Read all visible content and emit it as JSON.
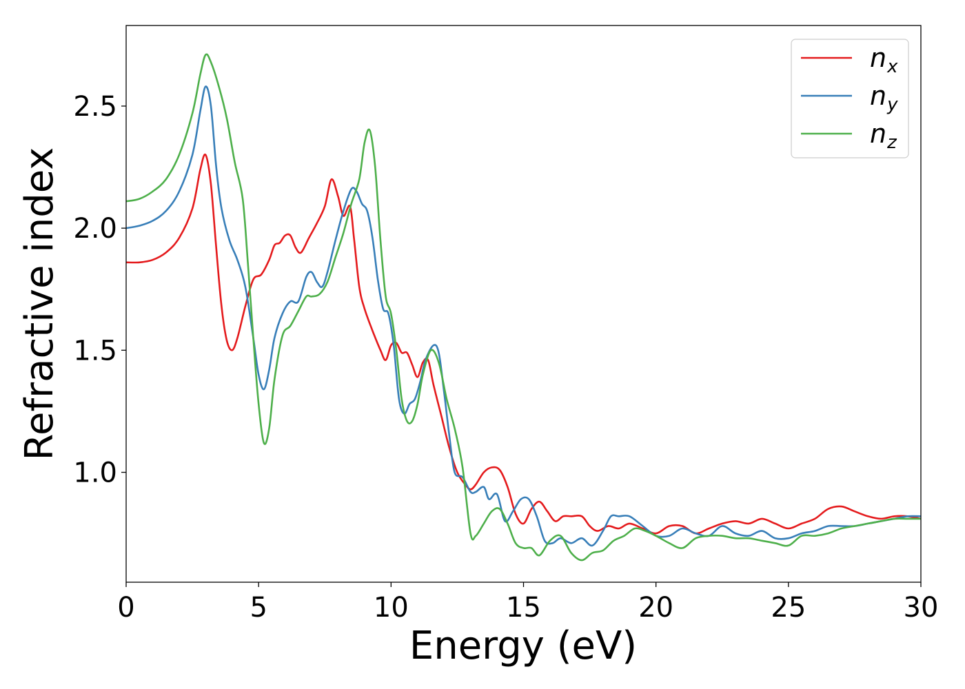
{
  "chart_data": {
    "type": "line",
    "xlabel": "Energy (eV)",
    "ylabel": "Refractive index",
    "xlim": [
      0,
      30
    ],
    "ylim": [
      0.55,
      2.83
    ],
    "xticks": [
      0,
      5,
      10,
      15,
      20,
      25,
      30
    ],
    "xtick_labels": [
      "0",
      "5",
      "10",
      "15",
      "20",
      "25",
      "30"
    ],
    "yticks": [
      1.0,
      1.5,
      2.0,
      2.5
    ],
    "ytick_labels": [
      "1.0",
      "1.5",
      "2.0",
      "2.5"
    ],
    "grid": false,
    "legend_position": "top-right",
    "series": [
      {
        "name": "n",
        "subscript": "x",
        "color": "#e41a1c",
        "points": [
          [
            0,
            1.86
          ],
          [
            0.5,
            1.86
          ],
          [
            1.0,
            1.87
          ],
          [
            1.5,
            1.9
          ],
          [
            2.0,
            1.96
          ],
          [
            2.5,
            2.08
          ],
          [
            2.8,
            2.24
          ],
          [
            3.0,
            2.3
          ],
          [
            3.2,
            2.18
          ],
          [
            3.4,
            1.92
          ],
          [
            3.6,
            1.68
          ],
          [
            3.8,
            1.54
          ],
          [
            4.0,
            1.5
          ],
          [
            4.2,
            1.55
          ],
          [
            4.5,
            1.68
          ],
          [
            4.8,
            1.79
          ],
          [
            5.1,
            1.81
          ],
          [
            5.4,
            1.87
          ],
          [
            5.6,
            1.93
          ],
          [
            5.8,
            1.94
          ],
          [
            6.0,
            1.97
          ],
          [
            6.2,
            1.97
          ],
          [
            6.4,
            1.92
          ],
          [
            6.6,
            1.9
          ],
          [
            6.9,
            1.96
          ],
          [
            7.2,
            2.02
          ],
          [
            7.5,
            2.09
          ],
          [
            7.75,
            2.2
          ],
          [
            8.0,
            2.13
          ],
          [
            8.2,
            2.05
          ],
          [
            8.45,
            2.09
          ],
          [
            8.6,
            1.96
          ],
          [
            8.8,
            1.76
          ],
          [
            9.0,
            1.67
          ],
          [
            9.3,
            1.58
          ],
          [
            9.6,
            1.5
          ],
          [
            9.8,
            1.46
          ],
          [
            10.0,
            1.52
          ],
          [
            10.2,
            1.53
          ],
          [
            10.4,
            1.49
          ],
          [
            10.6,
            1.49
          ],
          [
            10.8,
            1.44
          ],
          [
            11.0,
            1.39
          ],
          [
            11.2,
            1.45
          ],
          [
            11.4,
            1.46
          ],
          [
            11.6,
            1.36
          ],
          [
            11.9,
            1.23
          ],
          [
            12.2,
            1.1
          ],
          [
            12.5,
            1.0
          ],
          [
            12.8,
            0.95
          ],
          [
            13.0,
            0.93
          ],
          [
            13.2,
            0.95
          ],
          [
            13.5,
            1.0
          ],
          [
            13.8,
            1.02
          ],
          [
            14.1,
            1.01
          ],
          [
            14.4,
            0.94
          ],
          [
            14.7,
            0.83
          ],
          [
            15.0,
            0.79
          ],
          [
            15.3,
            0.85
          ],
          [
            15.6,
            0.88
          ],
          [
            15.9,
            0.84
          ],
          [
            16.2,
            0.8
          ],
          [
            16.5,
            0.82
          ],
          [
            16.8,
            0.82
          ],
          [
            17.2,
            0.82
          ],
          [
            17.5,
            0.78
          ],
          [
            17.8,
            0.76
          ],
          [
            18.2,
            0.78
          ],
          [
            18.6,
            0.77
          ],
          [
            19.0,
            0.79
          ],
          [
            19.5,
            0.77
          ],
          [
            20.0,
            0.75
          ],
          [
            20.5,
            0.78
          ],
          [
            21.0,
            0.78
          ],
          [
            21.5,
            0.75
          ],
          [
            22.0,
            0.77
          ],
          [
            22.5,
            0.79
          ],
          [
            23.0,
            0.8
          ],
          [
            23.5,
            0.79
          ],
          [
            24.0,
            0.81
          ],
          [
            24.5,
            0.79
          ],
          [
            25.0,
            0.77
          ],
          [
            25.5,
            0.79
          ],
          [
            26.0,
            0.81
          ],
          [
            26.5,
            0.85
          ],
          [
            27.0,
            0.86
          ],
          [
            27.5,
            0.84
          ],
          [
            28.0,
            0.82
          ],
          [
            28.5,
            0.81
          ],
          [
            29.0,
            0.82
          ],
          [
            29.5,
            0.82
          ],
          [
            30.0,
            0.81
          ]
        ]
      },
      {
        "name": "n",
        "subscript": "y",
        "color": "#377eb8",
        "points": [
          [
            0,
            2.0
          ],
          [
            0.5,
            2.01
          ],
          [
            1.0,
            2.03
          ],
          [
            1.5,
            2.07
          ],
          [
            2.0,
            2.15
          ],
          [
            2.5,
            2.3
          ],
          [
            2.8,
            2.48
          ],
          [
            3.0,
            2.58
          ],
          [
            3.2,
            2.5
          ],
          [
            3.4,
            2.25
          ],
          [
            3.6,
            2.08
          ],
          [
            3.9,
            1.95
          ],
          [
            4.2,
            1.87
          ],
          [
            4.5,
            1.76
          ],
          [
            4.8,
            1.55
          ],
          [
            5.0,
            1.4
          ],
          [
            5.2,
            1.34
          ],
          [
            5.4,
            1.42
          ],
          [
            5.6,
            1.55
          ],
          [
            5.9,
            1.65
          ],
          [
            6.2,
            1.7
          ],
          [
            6.5,
            1.7
          ],
          [
            6.8,
            1.8
          ],
          [
            7.0,
            1.82
          ],
          [
            7.2,
            1.78
          ],
          [
            7.4,
            1.76
          ],
          [
            7.6,
            1.82
          ],
          [
            7.9,
            1.95
          ],
          [
            8.2,
            2.07
          ],
          [
            8.5,
            2.16
          ],
          [
            8.7,
            2.15
          ],
          [
            8.9,
            2.1
          ],
          [
            9.1,
            2.07
          ],
          [
            9.3,
            1.96
          ],
          [
            9.5,
            1.79
          ],
          [
            9.7,
            1.67
          ],
          [
            9.9,
            1.65
          ],
          [
            10.1,
            1.52
          ],
          [
            10.3,
            1.3
          ],
          [
            10.5,
            1.24
          ],
          [
            10.7,
            1.28
          ],
          [
            10.9,
            1.3
          ],
          [
            11.1,
            1.37
          ],
          [
            11.3,
            1.46
          ],
          [
            11.6,
            1.52
          ],
          [
            11.8,
            1.49
          ],
          [
            12.0,
            1.33
          ],
          [
            12.2,
            1.15
          ],
          [
            12.4,
            1.0
          ],
          [
            12.7,
            0.98
          ],
          [
            13.0,
            0.92
          ],
          [
            13.2,
            0.92
          ],
          [
            13.5,
            0.94
          ],
          [
            13.7,
            0.89
          ],
          [
            14.0,
            0.91
          ],
          [
            14.3,
            0.8
          ],
          [
            14.6,
            0.84
          ],
          [
            14.9,
            0.89
          ],
          [
            15.2,
            0.89
          ],
          [
            15.5,
            0.82
          ],
          [
            15.8,
            0.72
          ],
          [
            16.1,
            0.71
          ],
          [
            16.4,
            0.73
          ],
          [
            16.8,
            0.71
          ],
          [
            17.2,
            0.73
          ],
          [
            17.6,
            0.7
          ],
          [
            18.0,
            0.76
          ],
          [
            18.3,
            0.82
          ],
          [
            18.6,
            0.82
          ],
          [
            19.0,
            0.82
          ],
          [
            19.5,
            0.78
          ],
          [
            20.0,
            0.74
          ],
          [
            20.5,
            0.74
          ],
          [
            21.0,
            0.77
          ],
          [
            21.5,
            0.75
          ],
          [
            22.0,
            0.74
          ],
          [
            22.5,
            0.78
          ],
          [
            23.0,
            0.75
          ],
          [
            23.5,
            0.74
          ],
          [
            24.0,
            0.76
          ],
          [
            24.5,
            0.73
          ],
          [
            25.0,
            0.73
          ],
          [
            25.5,
            0.75
          ],
          [
            26.0,
            0.76
          ],
          [
            26.5,
            0.78
          ],
          [
            27.0,
            0.78
          ],
          [
            27.5,
            0.78
          ],
          [
            28.0,
            0.79
          ],
          [
            28.5,
            0.8
          ],
          [
            29.0,
            0.81
          ],
          [
            29.5,
            0.82
          ],
          [
            30.0,
            0.82
          ]
        ]
      },
      {
        "name": "n",
        "subscript": "z",
        "color": "#4daf4a",
        "points": [
          [
            0,
            2.11
          ],
          [
            0.5,
            2.12
          ],
          [
            1.0,
            2.15
          ],
          [
            1.5,
            2.2
          ],
          [
            2.0,
            2.3
          ],
          [
            2.5,
            2.47
          ],
          [
            2.8,
            2.63
          ],
          [
            3.0,
            2.71
          ],
          [
            3.2,
            2.68
          ],
          [
            3.5,
            2.58
          ],
          [
            3.8,
            2.45
          ],
          [
            4.1,
            2.27
          ],
          [
            4.4,
            2.12
          ],
          [
            4.6,
            1.85
          ],
          [
            4.8,
            1.55
          ],
          [
            5.0,
            1.28
          ],
          [
            5.2,
            1.12
          ],
          [
            5.4,
            1.18
          ],
          [
            5.6,
            1.38
          ],
          [
            5.9,
            1.56
          ],
          [
            6.2,
            1.6
          ],
          [
            6.5,
            1.66
          ],
          [
            6.8,
            1.72
          ],
          [
            7.0,
            1.72
          ],
          [
            7.3,
            1.73
          ],
          [
            7.6,
            1.78
          ],
          [
            7.9,
            1.88
          ],
          [
            8.2,
            1.98
          ],
          [
            8.5,
            2.1
          ],
          [
            8.8,
            2.2
          ],
          [
            9.0,
            2.35
          ],
          [
            9.2,
            2.4
          ],
          [
            9.4,
            2.25
          ],
          [
            9.6,
            1.95
          ],
          [
            9.8,
            1.72
          ],
          [
            10.0,
            1.65
          ],
          [
            10.2,
            1.5
          ],
          [
            10.4,
            1.3
          ],
          [
            10.6,
            1.21
          ],
          [
            10.8,
            1.21
          ],
          [
            11.0,
            1.28
          ],
          [
            11.2,
            1.4
          ],
          [
            11.5,
            1.5
          ],
          [
            11.8,
            1.45
          ],
          [
            12.1,
            1.3
          ],
          [
            12.4,
            1.18
          ],
          [
            12.7,
            1.02
          ],
          [
            13.0,
            0.75
          ],
          [
            13.2,
            0.74
          ],
          [
            13.5,
            0.79
          ],
          [
            13.8,
            0.84
          ],
          [
            14.1,
            0.85
          ],
          [
            14.4,
            0.79
          ],
          [
            14.7,
            0.71
          ],
          [
            15.0,
            0.69
          ],
          [
            15.3,
            0.69
          ],
          [
            15.6,
            0.66
          ],
          [
            16.0,
            0.72
          ],
          [
            16.4,
            0.74
          ],
          [
            16.8,
            0.67
          ],
          [
            17.2,
            0.64
          ],
          [
            17.6,
            0.67
          ],
          [
            18.0,
            0.68
          ],
          [
            18.4,
            0.72
          ],
          [
            18.8,
            0.74
          ],
          [
            19.2,
            0.77
          ],
          [
            19.6,
            0.76
          ],
          [
            20.0,
            0.74
          ],
          [
            20.5,
            0.71
          ],
          [
            21.0,
            0.69
          ],
          [
            21.5,
            0.73
          ],
          [
            22.0,
            0.74
          ],
          [
            22.5,
            0.74
          ],
          [
            23.0,
            0.73
          ],
          [
            23.5,
            0.73
          ],
          [
            24.0,
            0.72
          ],
          [
            24.5,
            0.71
          ],
          [
            25.0,
            0.7
          ],
          [
            25.5,
            0.74
          ],
          [
            26.0,
            0.74
          ],
          [
            26.5,
            0.75
          ],
          [
            27.0,
            0.77
          ],
          [
            27.5,
            0.78
          ],
          [
            28.0,
            0.79
          ],
          [
            28.5,
            0.8
          ],
          [
            29.0,
            0.81
          ],
          [
            29.5,
            0.81
          ],
          [
            30.0,
            0.81
          ]
        ]
      }
    ]
  }
}
